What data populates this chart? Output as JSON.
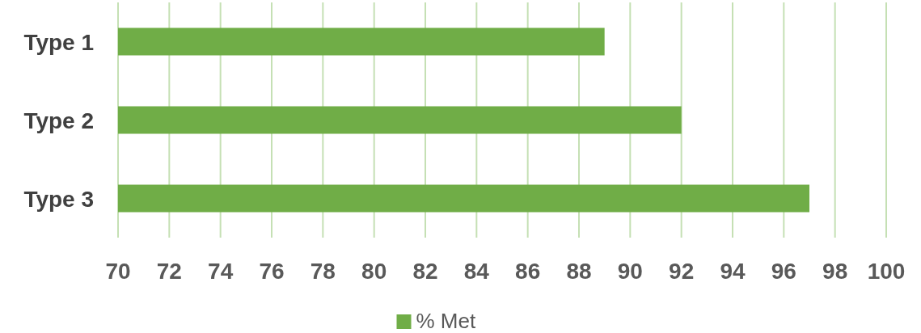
{
  "chart_data": {
    "type": "bar",
    "orientation": "horizontal",
    "categories": [
      "Type 1",
      "Type 2",
      "Type 3"
    ],
    "series": [
      {
        "name": "% Met",
        "color": "#70ad47",
        "values": [
          89,
          92,
          97
        ]
      }
    ],
    "xlim": [
      70,
      100
    ],
    "xticks": [
      70,
      72,
      74,
      76,
      78,
      80,
      82,
      84,
      86,
      88,
      90,
      92,
      94,
      96,
      98,
      100
    ],
    "grid": "x",
    "legend": "bottom"
  }
}
